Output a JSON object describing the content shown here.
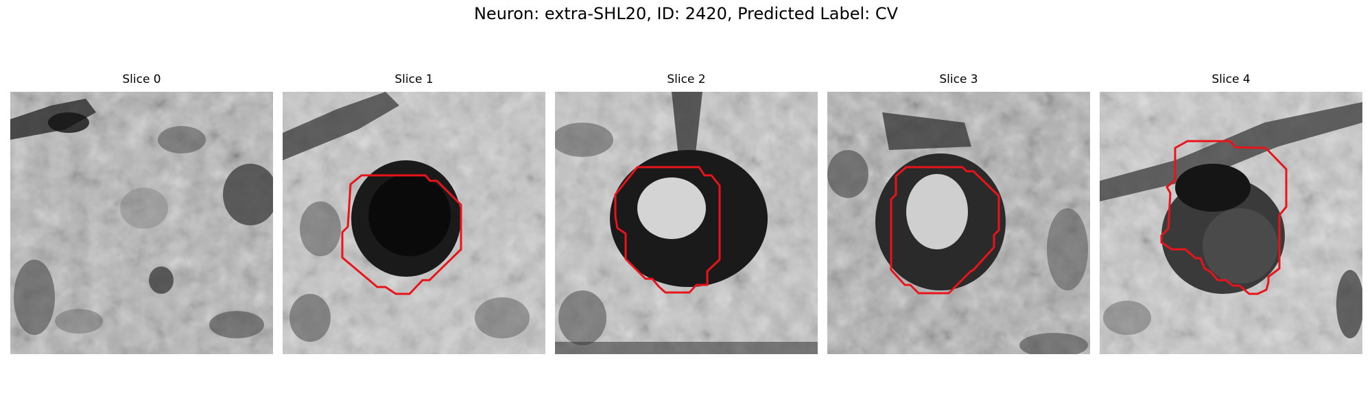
{
  "figure": {
    "title": "Neuron: extra-SHL20, ID: 2420, Predicted Label: CV"
  },
  "contour_color": "#e8141a",
  "panels": [
    {
      "label": "Slice 0",
      "has_contour": false
    },
    {
      "label": "Slice 1",
      "has_contour": true
    },
    {
      "label": "Slice 2",
      "has_contour": true
    },
    {
      "label": "Slice 3",
      "has_contour": true
    },
    {
      "label": "Slice 4",
      "has_contour": true
    }
  ]
}
